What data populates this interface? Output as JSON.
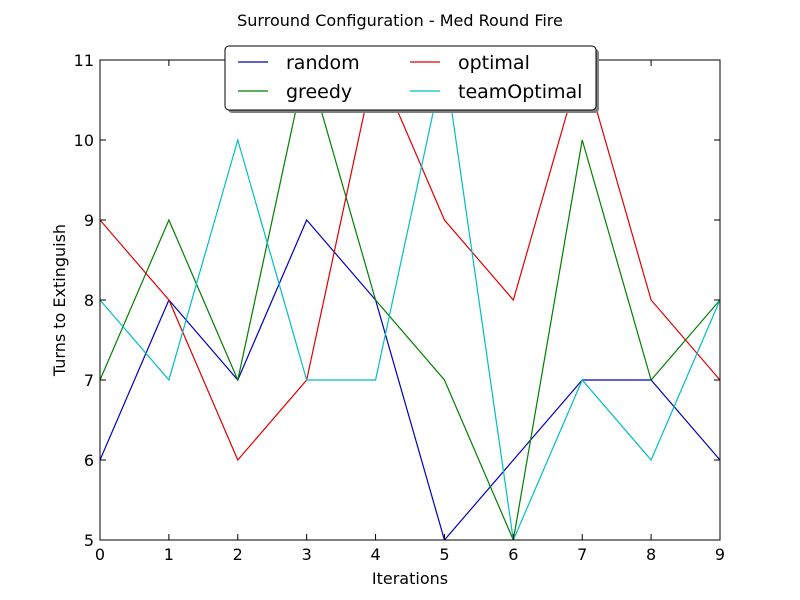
{
  "chart_data": {
    "type": "line",
    "title": "Surround Configuration - Med Round Fire",
    "xlabel": "Iterations",
    "ylabel": "Turns to Extinguish",
    "x": [
      0,
      1,
      2,
      3,
      4,
      5,
      6,
      7,
      8,
      9
    ],
    "xlim": [
      0,
      9
    ],
    "ylim": [
      5,
      11
    ],
    "xticks": [
      "0",
      "1",
      "2",
      "3",
      "4",
      "5",
      "6",
      "7",
      "8",
      "9"
    ],
    "yticks": [
      "5",
      "6",
      "7",
      "8",
      "9",
      "10",
      "11"
    ],
    "grid": false,
    "legend_position": "top-center",
    "series": [
      {
        "name": "random",
        "color": "#0000bf",
        "values": [
          6,
          8,
          7,
          9,
          8,
          5,
          6,
          7,
          7,
          6
        ]
      },
      {
        "name": "greedy",
        "color": "#007f00",
        "values": [
          7,
          9,
          7,
          11,
          8,
          7,
          5,
          10,
          7,
          8
        ]
      },
      {
        "name": "optimal",
        "color": "#e00000",
        "values": [
          9,
          8,
          6,
          7,
          11,
          9,
          8,
          11,
          8,
          7
        ]
      },
      {
        "name": "teamOptimal",
        "color": "#00bfbf",
        "values": [
          8,
          7,
          10,
          7,
          7,
          11,
          5,
          7,
          6,
          8
        ]
      }
    ]
  }
}
